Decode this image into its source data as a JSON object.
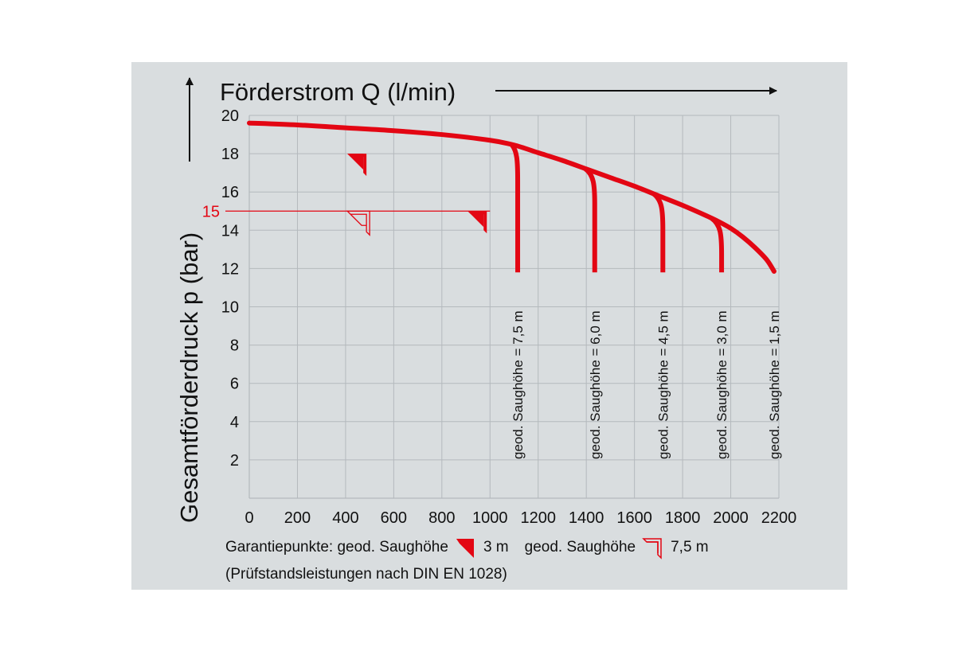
{
  "chart_data": {
    "type": "line",
    "title": "Förderstrom Q (l/min)",
    "xlabel": "Förderstrom Q (l/min)",
    "ylabel": "Gesamtförderdruck p (bar)",
    "xlim": [
      0,
      2200
    ],
    "ylim": [
      0,
      20
    ],
    "x_ticks": [
      "0",
      "200",
      "400",
      "600",
      "800",
      "1000",
      "1200",
      "1400",
      "1600",
      "1800",
      "2000",
      "2200"
    ],
    "y_ticks": [
      "2",
      "4",
      "6",
      "8",
      "10",
      "12",
      "14",
      "16",
      "18",
      "20"
    ],
    "grid": true,
    "main_curve": {
      "x": [
        0,
        200,
        400,
        600,
        800,
        1000,
        1100,
        1200,
        1300,
        1400,
        1500,
        1600,
        1700,
        1800,
        1900,
        1950,
        2000,
        2050,
        2100,
        2150,
        2180
      ],
      "y": [
        19.6,
        19.5,
        19.35,
        19.2,
        19.0,
        18.7,
        18.45,
        18.05,
        17.65,
        17.2,
        16.75,
        16.3,
        15.8,
        15.3,
        14.75,
        14.45,
        14.1,
        13.65,
        13.1,
        12.45,
        11.85
      ]
    },
    "series": [
      {
        "name": "geod. Saughöhe = 7,5 m",
        "branch_x": 1090,
        "end_x": 1115,
        "end_y": 11.8
      },
      {
        "name": "geod. Saughöhe = 6,0 m",
        "branch_x": 1395,
        "end_x": 1435,
        "end_y": 11.8
      },
      {
        "name": "geod. Saughöhe = 4,5 m",
        "branch_x": 1680,
        "end_x": 1718,
        "end_y": 11.8
      },
      {
        "name": "geod. Saughöhe = 3,0 m",
        "branch_x": 1920,
        "end_x": 1962,
        "end_y": 11.8
      },
      {
        "name": "geod. Saughöhe = 1,5 m",
        "branch_x": 2180,
        "end_x": 2180,
        "end_y": 11.8
      }
    ],
    "reference_line": {
      "label": "15",
      "y": 15,
      "x_end": 1000
    },
    "guarantee_points": [
      {
        "type": "filled",
        "x": 500,
        "y": 18
      },
      {
        "type": "outline",
        "x": 500,
        "y": 15
      },
      {
        "type": "filled",
        "x": 1000,
        "y": 15
      }
    ],
    "colors": {
      "curve": "#e30613",
      "grid": "#b4b9bd",
      "text": "#111111",
      "background": "#d9dddf"
    }
  },
  "legend": {
    "label": "Garantiepunkte: geod. Saughöhe",
    "filled_value": "3 m",
    "label2": "geod. Saughöhe",
    "outline_value": "7,5 m"
  },
  "note": "(Prüfstandsleistungen nach DIN EN 1028)"
}
